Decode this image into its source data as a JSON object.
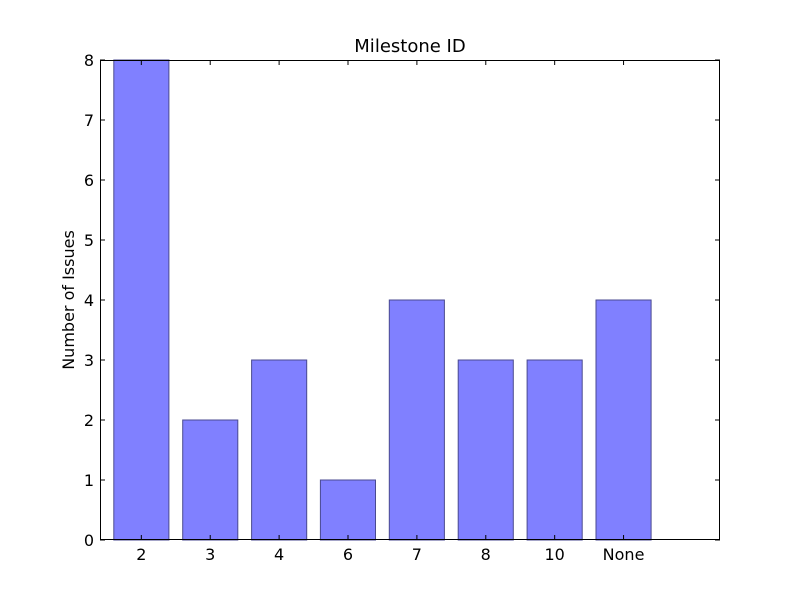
{
  "chart_data": {
    "type": "bar",
    "title": "Milestone ID",
    "xlabel": "",
    "ylabel": "Number of Issues",
    "categories": [
      "2",
      "3",
      "4",
      "6",
      "7",
      "8",
      "10",
      "None"
    ],
    "values": [
      8,
      2,
      3,
      1,
      4,
      3,
      3,
      4
    ],
    "ylim": [
      0,
      8
    ],
    "yticks": [
      "0",
      "1",
      "2",
      "3",
      "4",
      "5",
      "6",
      "7",
      "8"
    ],
    "grid": false,
    "colors": {
      "bar_fill": "#8080ff",
      "bar_edge": "#4a4a90"
    }
  }
}
